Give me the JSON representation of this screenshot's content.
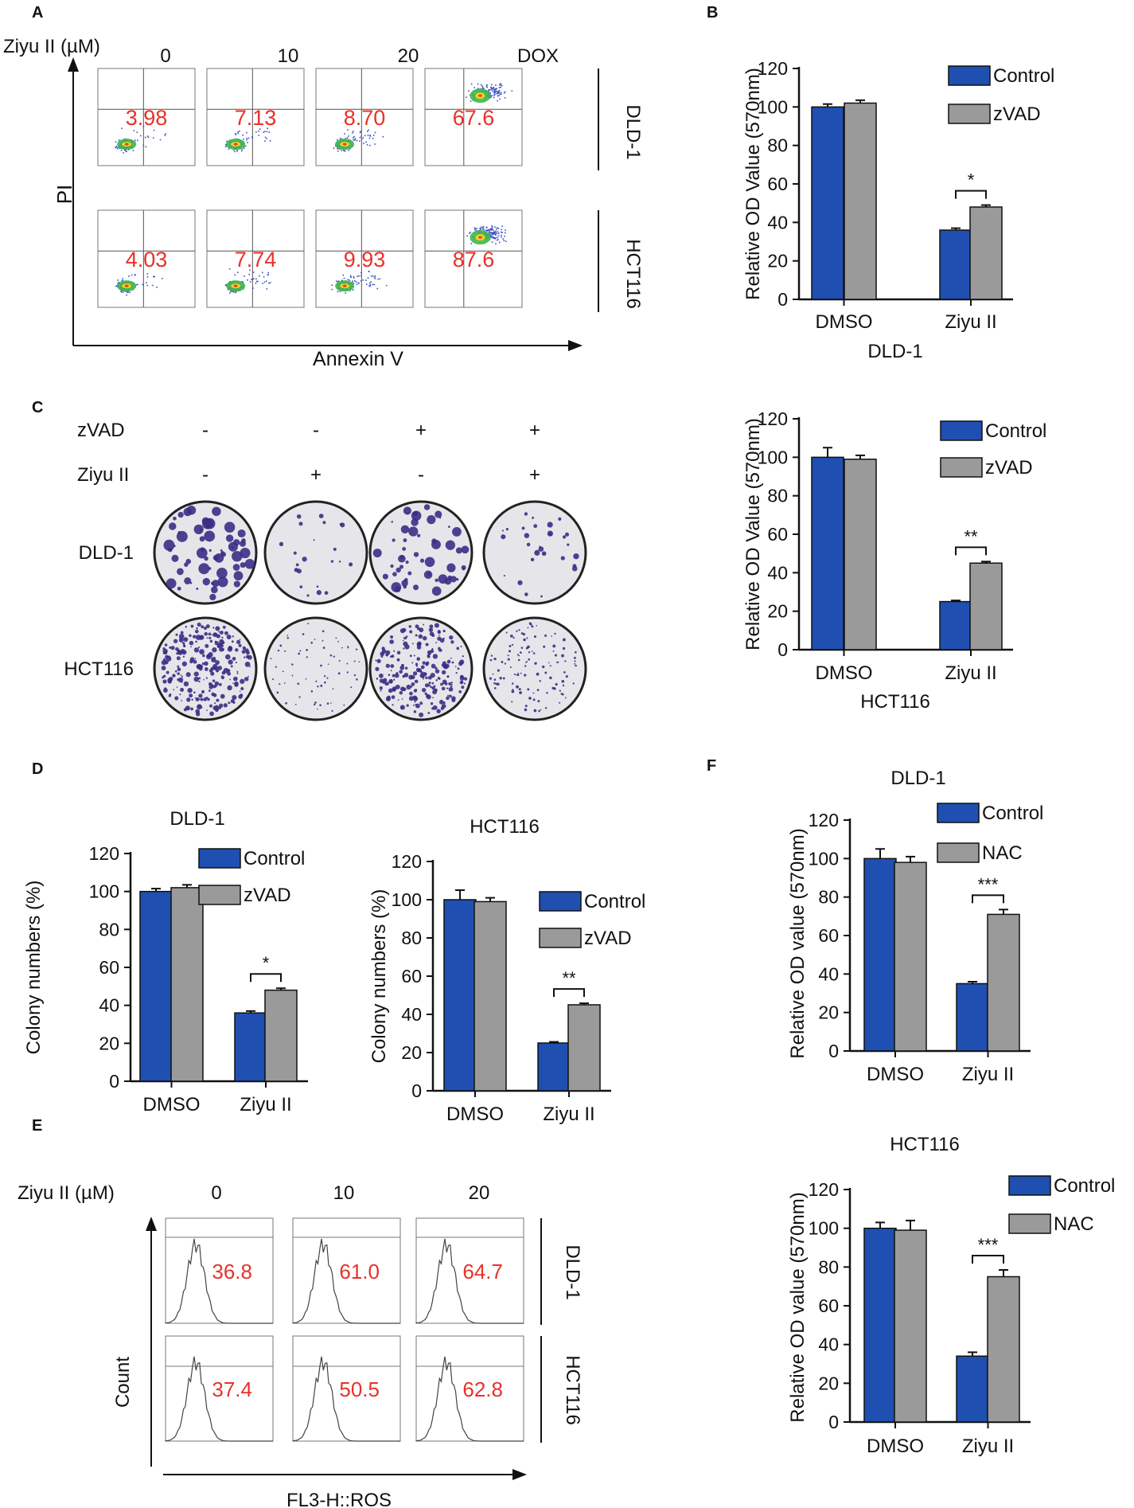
{
  "colors": {
    "control": "#1f4fb0",
    "treated": "#9a9a9a",
    "red_value": "#e8312a",
    "axis": "#111111"
  },
  "panel_a": {
    "letter": "A",
    "condition_label": "Ziyu  II (µM)",
    "columns": [
      "0",
      "10",
      "20",
      "DOX"
    ],
    "rows": [
      "DLD-1",
      "HCT116"
    ],
    "values": [
      [
        "3.98",
        "7.13",
        "8.70",
        "67.6"
      ],
      [
        "4.03",
        "7.74",
        "9.93",
        "87.6"
      ]
    ],
    "ylabel": "PI",
    "xlabel": "Annexin V"
  },
  "panel_c": {
    "letter": "C",
    "treatments": [
      {
        "label": "zVAD",
        "signs": [
          "-",
          "-",
          "+",
          "+"
        ]
      },
      {
        "label": "Ziyu II",
        "signs": [
          "-",
          "+",
          "-",
          "+"
        ]
      }
    ],
    "rows": [
      "DLD-1",
      "HCT116"
    ],
    "colony_density": [
      [
        1.0,
        0.36,
        0.9,
        0.48
      ],
      [
        1.0,
        0.25,
        0.9,
        0.45
      ]
    ]
  },
  "panel_e": {
    "letter": "E",
    "condition_label": "Ziyu  II (µM)",
    "columns": [
      "0",
      "10",
      "20"
    ],
    "rows": [
      "DLD-1",
      "HCT116"
    ],
    "values": [
      [
        "36.8",
        "61.0",
        "64.7"
      ],
      [
        "37.4",
        "50.5",
        "62.8"
      ]
    ],
    "ylabel": "Count",
    "xlabel": "FL3-H::ROS"
  },
  "chart_data": [
    {
      "id": "B1",
      "letter": "B",
      "type": "bar",
      "title": "",
      "xlabel": "DLD-1",
      "ylabel": "Relative OD Value (570nm)",
      "categories": [
        "DMSO",
        "Ziyu II"
      ],
      "series": [
        {
          "name": "Control",
          "values": [
            100,
            36
          ],
          "errors": [
            1.5,
            1
          ]
        },
        {
          "name": "zVAD",
          "values": [
            102,
            48
          ],
          "errors": [
            1.5,
            1
          ]
        }
      ],
      "ylim": [
        0,
        120
      ],
      "yticks": [
        "0",
        "20",
        "40",
        "60",
        "80",
        "100",
        "120"
      ],
      "significance": {
        "category": "Ziyu II",
        "label": "*"
      }
    },
    {
      "id": "B2",
      "letter": "",
      "type": "bar",
      "title": "",
      "xlabel": "HCT116",
      "ylabel": "Relative OD Value (570nm)",
      "categories": [
        "DMSO",
        "Ziyu II"
      ],
      "series": [
        {
          "name": "Control",
          "values": [
            100,
            25
          ],
          "errors": [
            5,
            0.6
          ]
        },
        {
          "name": "zVAD",
          "values": [
            99,
            45
          ],
          "errors": [
            2,
            0.8
          ]
        }
      ],
      "ylim": [
        0,
        120
      ],
      "yticks": [
        "0",
        "20",
        "40",
        "60",
        "80",
        "100",
        "120"
      ],
      "significance": {
        "category": "Ziyu II",
        "label": "**"
      }
    },
    {
      "id": "D1",
      "letter": "D",
      "type": "bar",
      "title": "DLD-1",
      "xlabel": "",
      "ylabel": "Colony numbers (%)",
      "categories": [
        "DMSO",
        "Ziyu II"
      ],
      "series": [
        {
          "name": "Control",
          "values": [
            100,
            36
          ],
          "errors": [
            1.5,
            1
          ]
        },
        {
          "name": "zVAD",
          "values": [
            102,
            48
          ],
          "errors": [
            1.5,
            1
          ]
        }
      ],
      "ylim": [
        0,
        120
      ],
      "yticks": [
        "0",
        "20",
        "40",
        "60",
        "80",
        "100",
        "120"
      ],
      "significance": {
        "category": "Ziyu II",
        "label": "*"
      }
    },
    {
      "id": "D2",
      "letter": "",
      "type": "bar",
      "title": "HCT116",
      "xlabel": "",
      "ylabel": "Colony numbers (%)",
      "categories": [
        "DMSO",
        "Ziyu II"
      ],
      "series": [
        {
          "name": "Control",
          "values": [
            100,
            25
          ],
          "errors": [
            5,
            0.6
          ]
        },
        {
          "name": "zVAD",
          "values": [
            99,
            45
          ],
          "errors": [
            2,
            0.8
          ]
        }
      ],
      "ylim": [
        0,
        120
      ],
      "yticks": [
        "0",
        "20",
        "40",
        "60",
        "80",
        "100",
        "120"
      ],
      "significance": {
        "category": "Ziyu II",
        "label": "**"
      }
    },
    {
      "id": "F1",
      "letter": "F",
      "type": "bar",
      "title": "DLD-1",
      "xlabel": "",
      "ylabel": "Relative OD value (570nm)",
      "categories": [
        "DMSO",
        "Ziyu  II"
      ],
      "series": [
        {
          "name": "Control",
          "values": [
            100,
            35
          ],
          "errors": [
            5,
            1
          ]
        },
        {
          "name": "NAC",
          "values": [
            98,
            71
          ],
          "errors": [
            3,
            2.5
          ]
        }
      ],
      "ylim": [
        0,
        120
      ],
      "yticks": [
        "0",
        "20",
        "40",
        "60",
        "80",
        "100",
        "120"
      ],
      "significance": {
        "category": "Ziyu  II",
        "label": "***"
      }
    },
    {
      "id": "F2",
      "letter": "",
      "type": "bar",
      "title": "HCT116",
      "xlabel": "",
      "ylabel": "Relative OD value (570nm)",
      "categories": [
        "DMSO",
        "Ziyu  II"
      ],
      "series": [
        {
          "name": "Control",
          "values": [
            100,
            34
          ],
          "errors": [
            3,
            2
          ]
        },
        {
          "name": "NAC",
          "values": [
            99,
            75
          ],
          "errors": [
            5,
            3.5
          ]
        }
      ],
      "ylim": [
        0,
        120
      ],
      "yticks": [
        "0",
        "20",
        "40",
        "60",
        "80",
        "100",
        "120"
      ],
      "significance": {
        "category": "Ziyu  II",
        "label": "***"
      }
    }
  ]
}
